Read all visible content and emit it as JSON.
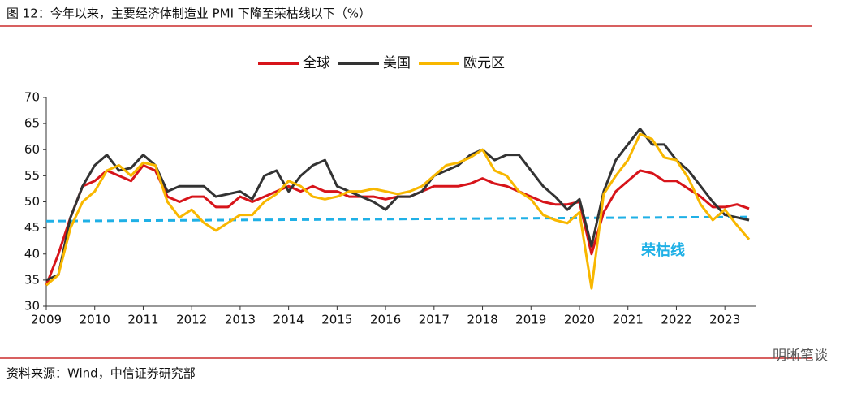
{
  "chart_data": {
    "type": "line",
    "title": "图 12：今年以来，主要经济体制造业 PMI 下降至荣枯线以下（%）",
    "source": "资料来源：Wind，中信证券研究部",
    "watermark": "明晰笔谈",
    "x": [
      2009,
      2009.25,
      2009.5,
      2009.75,
      2010,
      2010.25,
      2010.5,
      2010.75,
      2011,
      2011.25,
      2011.5,
      2011.75,
      2012,
      2012.25,
      2012.5,
      2012.75,
      2013,
      2013.25,
      2013.5,
      2013.75,
      2014,
      2014.25,
      2014.5,
      2014.75,
      2015,
      2015.25,
      2015.5,
      2015.75,
      2016,
      2016.25,
      2016.5,
      2016.75,
      2017,
      2017.25,
      2017.5,
      2017.75,
      2018,
      2018.25,
      2018.5,
      2018.75,
      2019,
      2019.25,
      2019.5,
      2019.75,
      2020,
      2020.25,
      2020.5,
      2020.75,
      2021,
      2021.25,
      2021.5,
      2021.75,
      2022,
      2022.25,
      2022.5,
      2022.75,
      2023,
      2023.25,
      2023.5
    ],
    "series": [
      {
        "name": "全球",
        "color": "#d7141a",
        "values": [
          34,
          40,
          47,
          53,
          54,
          56,
          55,
          54,
          57,
          56,
          51,
          50,
          51,
          51,
          49,
          49,
          51,
          50,
          51,
          52,
          53,
          52,
          53,
          52,
          52,
          51,
          51,
          51,
          50.5,
          51,
          51,
          52,
          53,
          53,
          53,
          53.5,
          54.5,
          53.5,
          53,
          52,
          51,
          50,
          49.5,
          49.5,
          50,
          40,
          48,
          52,
          54,
          56,
          55.5,
          54,
          54,
          52.5,
          51,
          49,
          49,
          49.5,
          48.7
        ]
      },
      {
        "name": "美国",
        "color": "#333333",
        "values": [
          35,
          36,
          47,
          53,
          57,
          59,
          56,
          56.5,
          59,
          57,
          52,
          53,
          53,
          53,
          51,
          51.5,
          52,
          50.5,
          55,
          56,
          52,
          55,
          57,
          58,
          53,
          52,
          51,
          50,
          48.5,
          51,
          51,
          52,
          55,
          56,
          57,
          59,
          60,
          58,
          59,
          59,
          56,
          53,
          51,
          48.5,
          50.5,
          41.5,
          52,
          58,
          61,
          64,
          61,
          61,
          58,
          56,
          53,
          50,
          47.5,
          47,
          46.5
        ]
      },
      {
        "name": "欧元区",
        "color": "#f8b700",
        "values": [
          34,
          36,
          45,
          50,
          52,
          56,
          57,
          55,
          57.5,
          57,
          50,
          47,
          48.5,
          46,
          44.5,
          46,
          47.5,
          47.5,
          50,
          51.5,
          54,
          53,
          51,
          50.5,
          51,
          52,
          52,
          52.5,
          52,
          51.5,
          52,
          53,
          55,
          57,
          57.5,
          58.5,
          60,
          56,
          55,
          52,
          50.5,
          47.5,
          46.5,
          45.9,
          48,
          33.4,
          51.5,
          55,
          58,
          63,
          62,
          58.5,
          58,
          54.5,
          49.5,
          46.5,
          48.5,
          45.5,
          42.8
        ]
      }
    ],
    "reference_line": {
      "label": "荣枯线",
      "color": "#1fb0e6",
      "x": [
        2009,
        2023.5
      ],
      "values": [
        46.3,
        47.1
      ]
    },
    "xlim": [
      2009,
      2023.65
    ],
    "xticks": [
      2009,
      2010,
      2011,
      2012,
      2013,
      2014,
      2015,
      2016,
      2017,
      2018,
      2019,
      2020,
      2021,
      2022,
      2023
    ],
    "ylim": [
      30,
      70
    ],
    "yticks": [
      30,
      35,
      40,
      45,
      50,
      55,
      60,
      65,
      70
    ]
  }
}
